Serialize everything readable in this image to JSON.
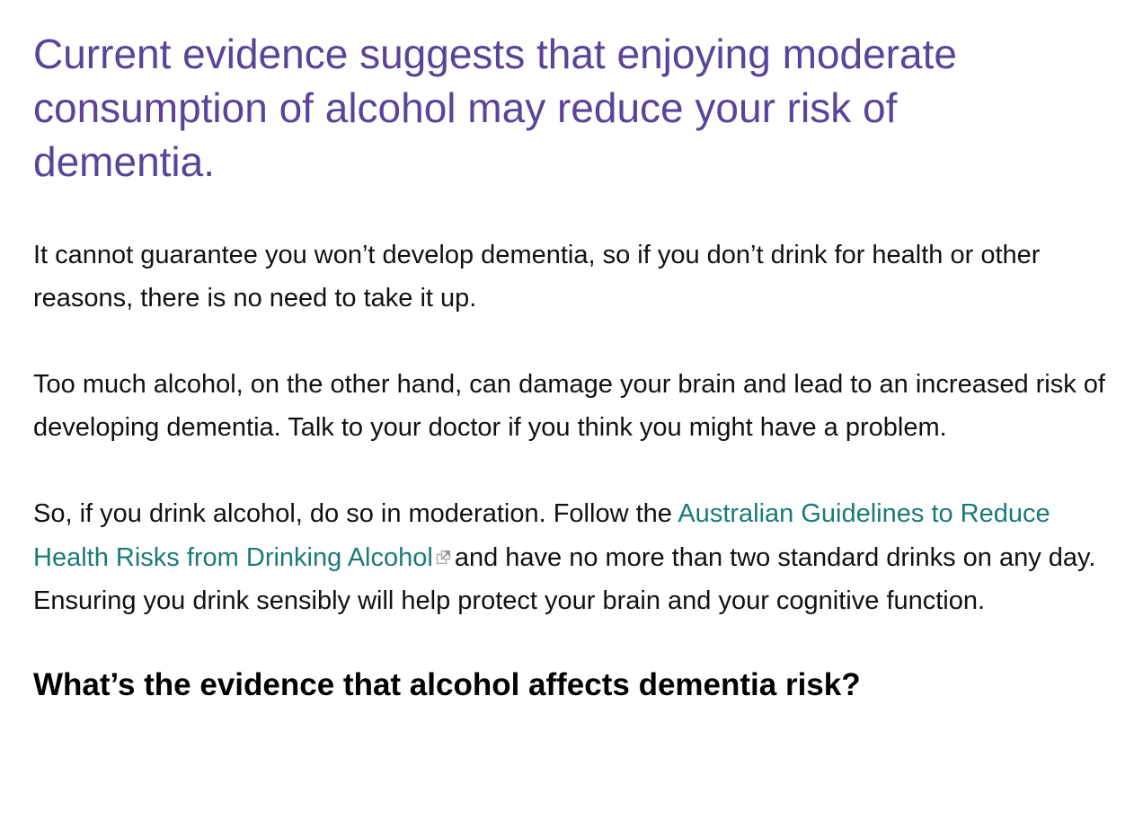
{
  "article": {
    "lead": "Current evidence suggests that enjoying moderate consumption of alcohol may reduce your risk of dementia.",
    "paragraph_1": "It cannot guarantee you won’t develop dementia, so if you don’t drink for health or other reasons, there is no need to take it up.",
    "paragraph_2": "Too much alcohol, on the other hand, can damage your brain and lead to an increased risk of developing dementia.  Talk to your doctor if you think you might have a problem.",
    "paragraph_3": {
      "before_link": "So, if you drink alcohol, do so in moderation.  Follow the ",
      "link_text": "Australian Guidelines to Reduce Health Risks from Drinking Alcohol",
      "after_link": "and have no more than two standard drinks on any day.  Ensuring you drink sensibly will help protect your brain and your cognitive function."
    },
    "section_heading": "What’s the evidence that alcohol affects dementia risk?"
  },
  "icons": {
    "external_link": "external-link-icon"
  },
  "colors": {
    "lead_text": "#5b4399",
    "body_text": "#111111",
    "link": "#1a7a78",
    "heading": "#000000"
  }
}
